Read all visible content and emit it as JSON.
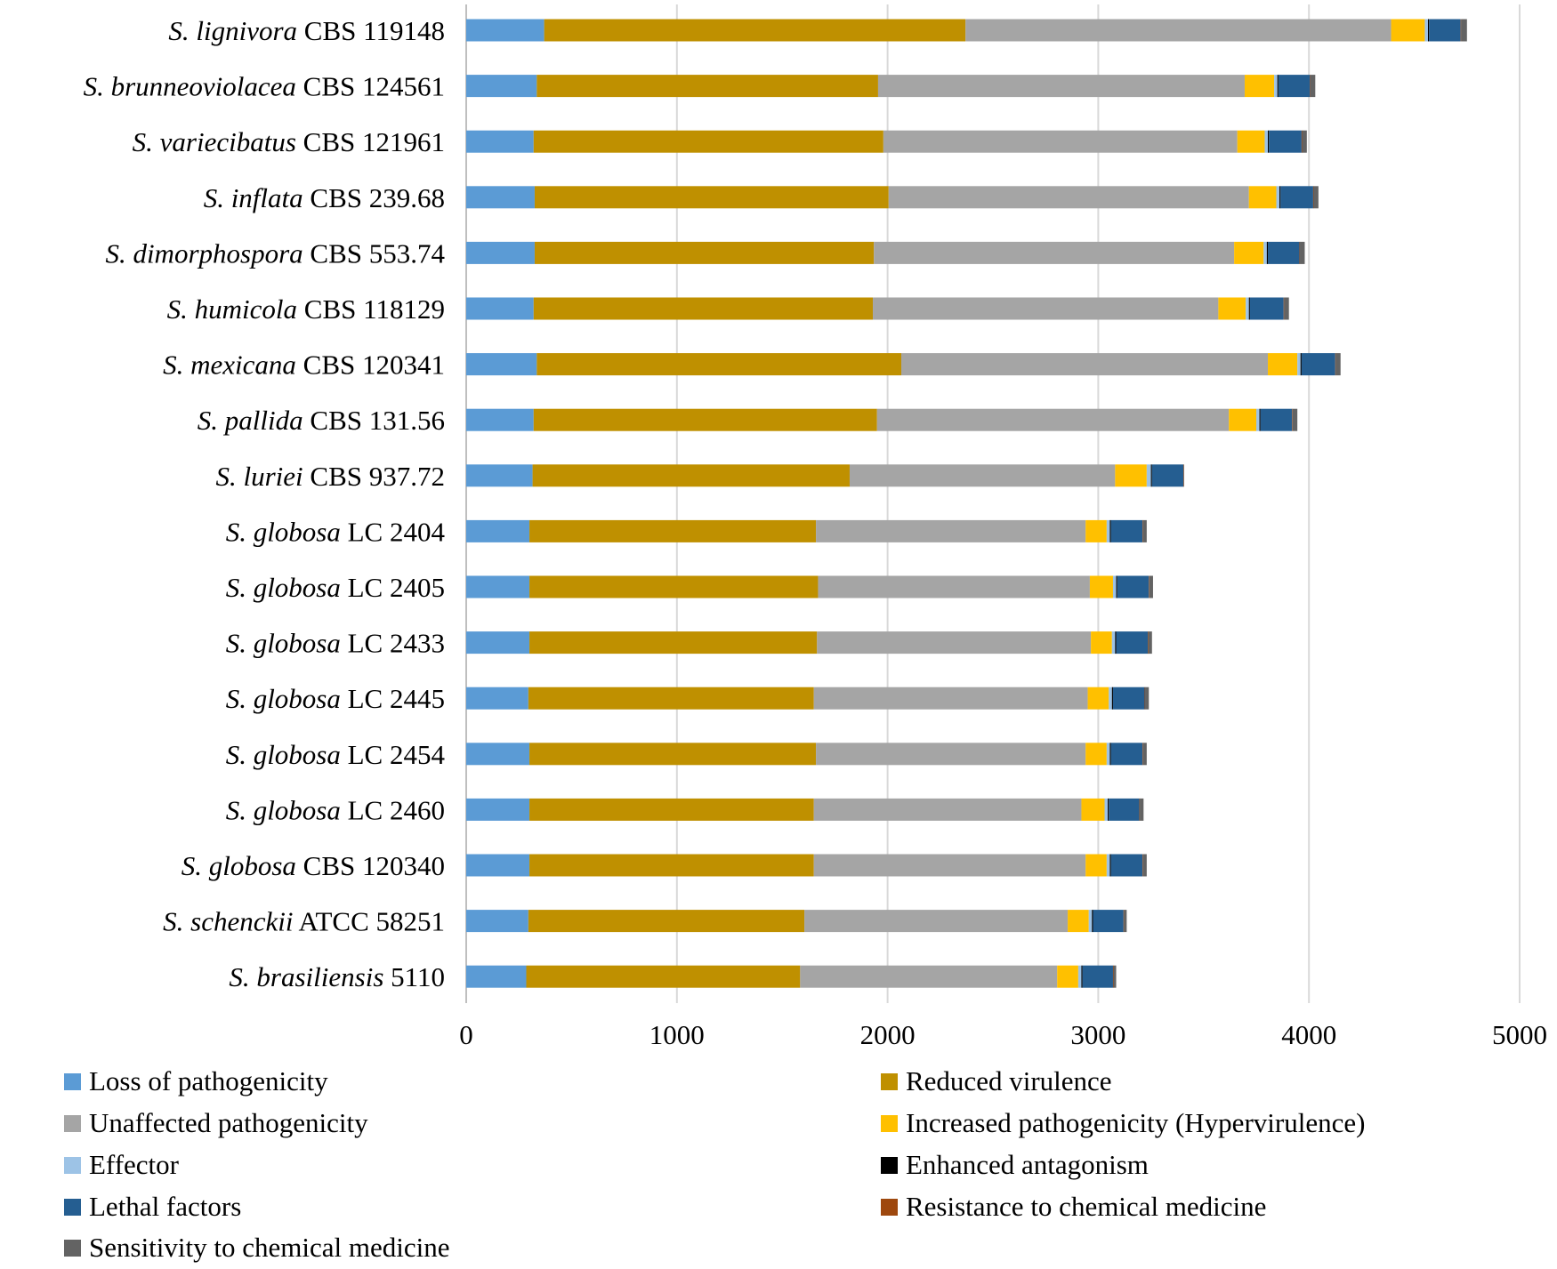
{
  "chart_data": {
    "type": "bar",
    "orientation": "horizontal",
    "stacked": true,
    "title": "",
    "xlabel": "",
    "ylabel": "",
    "xlim": [
      0,
      5000
    ],
    "xticks": [
      0,
      1000,
      2000,
      3000,
      4000,
      5000
    ],
    "grid": true,
    "legend_position": "bottom",
    "categories": [
      {
        "italic": "S. lignivora",
        "rest": " CBS 119148"
      },
      {
        "italic": "S. brunneoviolacea",
        "rest": " CBS 124561"
      },
      {
        "italic": "S. variecibatus",
        "rest": " CBS 121961"
      },
      {
        "italic": "S. inflata",
        "rest": " CBS 239.68"
      },
      {
        "italic": "S. dimorphospora",
        "rest": " CBS 553.74"
      },
      {
        "italic": "S. humicola",
        "rest": " CBS 118129"
      },
      {
        "italic": "S. mexicana",
        "rest": " CBS 120341"
      },
      {
        "italic": "S. pallida",
        "rest": " CBS 131.56"
      },
      {
        "italic": "S. luriei",
        "rest": " CBS 937.72"
      },
      {
        "italic": "S. globosa",
        "rest": " LC 2404"
      },
      {
        "italic": "S. globosa",
        "rest": " LC 2405"
      },
      {
        "italic": "S. globosa",
        "rest": " LC 2433"
      },
      {
        "italic": "S. globosa",
        "rest": " LC 2445"
      },
      {
        "italic": "S. globosa",
        "rest": " LC 2454"
      },
      {
        "italic": "S. globosa",
        "rest": " LC 2460"
      },
      {
        "italic": "S. globosa",
        "rest": " CBS 120340"
      },
      {
        "italic": "S. schenckii",
        "rest": " ATCC 58251"
      },
      {
        "italic": "S. brasiliensis",
        "rest": " 5110"
      }
    ],
    "series": [
      {
        "name": "Loss of pathogenicity",
        "color": "#5b9bd5",
        "values": [
          370,
          335,
          320,
          325,
          325,
          320,
          335,
          320,
          315,
          300,
          300,
          300,
          295,
          300,
          300,
          300,
          295,
          285
        ]
      },
      {
        "name": "Reduced virulence",
        "color": "#bf9000",
        "values": [
          2000,
          1620,
          1660,
          1680,
          1610,
          1610,
          1730,
          1630,
          1505,
          1360,
          1370,
          1365,
          1355,
          1360,
          1350,
          1350,
          1310,
          1300
        ]
      },
      {
        "name": "Unaffected pathogenicity",
        "color": "#a5a5a5",
        "values": [
          2020,
          1740,
          1680,
          1710,
          1710,
          1640,
          1740,
          1670,
          1260,
          1280,
          1290,
          1300,
          1300,
          1280,
          1270,
          1290,
          1250,
          1220
        ]
      },
      {
        "name": "Increased pathogenicity (Hypervirulence)",
        "color": "#ffc000",
        "values": [
          160,
          140,
          130,
          130,
          140,
          130,
          140,
          130,
          150,
          100,
          110,
          100,
          100,
          100,
          110,
          100,
          100,
          100
        ]
      },
      {
        "name": "Effector",
        "color": "#9dc3e6",
        "values": [
          15,
          15,
          15,
          15,
          15,
          15,
          15,
          15,
          20,
          15,
          15,
          15,
          15,
          15,
          15,
          15,
          15,
          15
        ]
      },
      {
        "name": "Enhanced antagonism",
        "color": "#000000",
        "values": [
          5,
          5,
          5,
          5,
          5,
          5,
          5,
          5,
          5,
          5,
          5,
          5,
          5,
          5,
          5,
          5,
          5,
          5
        ]
      },
      {
        "name": "Lethal factors",
        "color": "#255e91",
        "values": [
          150,
          150,
          155,
          155,
          150,
          160,
          160,
          150,
          150,
          150,
          150,
          150,
          150,
          150,
          145,
          150,
          145,
          145
        ]
      },
      {
        "name": "Resistance to chemical medicine",
        "color": "#9e480e",
        "values": [
          2,
          2,
          2,
          2,
          2,
          2,
          2,
          2,
          2,
          2,
          2,
          2,
          2,
          2,
          2,
          2,
          2,
          2
        ]
      },
      {
        "name": "Sensitivity to chemical medicine",
        "color": "#636363",
        "values": [
          28,
          23,
          23,
          23,
          23,
          23,
          23,
          23,
          0,
          18,
          18,
          18,
          18,
          18,
          18,
          18,
          13,
          13
        ]
      }
    ]
  }
}
